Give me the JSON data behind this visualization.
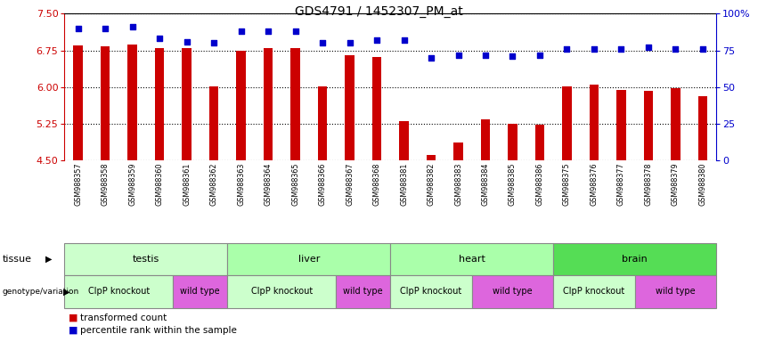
{
  "title": "GDS4791 / 1452307_PM_at",
  "samples": [
    "GSM988357",
    "GSM988358",
    "GSM988359",
    "GSM988360",
    "GSM988361",
    "GSM988362",
    "GSM988363",
    "GSM988364",
    "GSM988365",
    "GSM988366",
    "GSM988367",
    "GSM988368",
    "GSM988381",
    "GSM988382",
    "GSM988383",
    "GSM988384",
    "GSM988385",
    "GSM988386",
    "GSM988375",
    "GSM988376",
    "GSM988377",
    "GSM988378",
    "GSM988379",
    "GSM988380"
  ],
  "transformed_count": [
    6.85,
    6.83,
    6.87,
    6.8,
    6.8,
    6.02,
    6.75,
    6.8,
    6.8,
    6.02,
    6.65,
    6.62,
    5.3,
    4.62,
    4.87,
    5.35,
    5.25,
    5.23,
    6.02,
    6.05,
    5.95,
    5.93,
    5.98,
    5.82
  ],
  "percentile_rank": [
    90,
    90,
    91,
    83,
    81,
    80,
    88,
    88,
    88,
    80,
    80,
    82,
    82,
    70,
    72,
    72,
    71,
    72,
    76,
    76,
    76,
    77,
    76,
    76
  ],
  "ylim_left": [
    4.5,
    7.5
  ],
  "ylim_right": [
    0,
    100
  ],
  "yticks_left": [
    4.5,
    5.25,
    6.0,
    6.75,
    7.5
  ],
  "yticks_right": [
    0,
    25,
    50,
    75,
    100
  ],
  "bar_color": "#cc0000",
  "dot_color": "#0000cc",
  "tissue_groups": [
    {
      "label": "testis",
      "start": 0,
      "end": 6,
      "color": "#ccffcc"
    },
    {
      "label": "liver",
      "start": 6,
      "end": 12,
      "color": "#aaffaa"
    },
    {
      "label": "heart",
      "start": 12,
      "end": 18,
      "color": "#aaffaa"
    },
    {
      "label": "brain",
      "start": 18,
      "end": 24,
      "color": "#55dd55"
    }
  ],
  "genotype_groups": [
    {
      "label": "ClpP knockout",
      "start": 0,
      "end": 4,
      "color": "#ccffcc"
    },
    {
      "label": "wild type",
      "start": 4,
      "end": 6,
      "color": "#dd66dd"
    },
    {
      "label": "ClpP knockout",
      "start": 6,
      "end": 10,
      "color": "#ccffcc"
    },
    {
      "label": "wild type",
      "start": 10,
      "end": 12,
      "color": "#dd66dd"
    },
    {
      "label": "ClpP knockout",
      "start": 12,
      "end": 15,
      "color": "#ccffcc"
    },
    {
      "label": "wild type",
      "start": 15,
      "end": 18,
      "color": "#dd66dd"
    },
    {
      "label": "ClpP knockout",
      "start": 18,
      "end": 21,
      "color": "#ccffcc"
    },
    {
      "label": "wild type",
      "start": 21,
      "end": 24,
      "color": "#dd66dd"
    }
  ]
}
